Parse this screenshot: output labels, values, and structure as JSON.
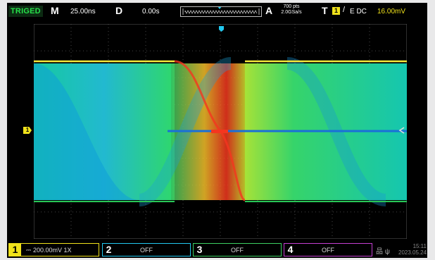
{
  "topbar": {
    "status": "TRIGED",
    "timebase_letter": "M",
    "timebase_value": "25.00ns",
    "delay_letter": "D",
    "delay_value": "0.00s",
    "acq_letter": "A",
    "acq_points": "700 pts",
    "acq_rate": "2.0GSa/s",
    "trig_letter": "T",
    "trig_source": "1",
    "trig_slope": "/",
    "trig_coupling": "E DC",
    "trig_level": "16.00mV"
  },
  "display": {
    "ch1_marker": "1",
    "colors": {
      "cold": "#1f8fd8",
      "mid": "#18d49a",
      "warm": "#f5e42a",
      "hot": "#f4361f",
      "grid": "#5a5a5a"
    }
  },
  "channels": [
    {
      "num": "1",
      "text": "200.00mV 1X",
      "color": "#f0e21b"
    },
    {
      "num": "2",
      "text": "OFF",
      "color": "#22c8ef"
    },
    {
      "num": "3",
      "text": "OFF",
      "color": "#3ccf62"
    },
    {
      "num": "4",
      "text": "OFF",
      "color": "#c43fd1"
    }
  ],
  "statusbar": {
    "time": "15:11",
    "date": "2023.05.24"
  }
}
